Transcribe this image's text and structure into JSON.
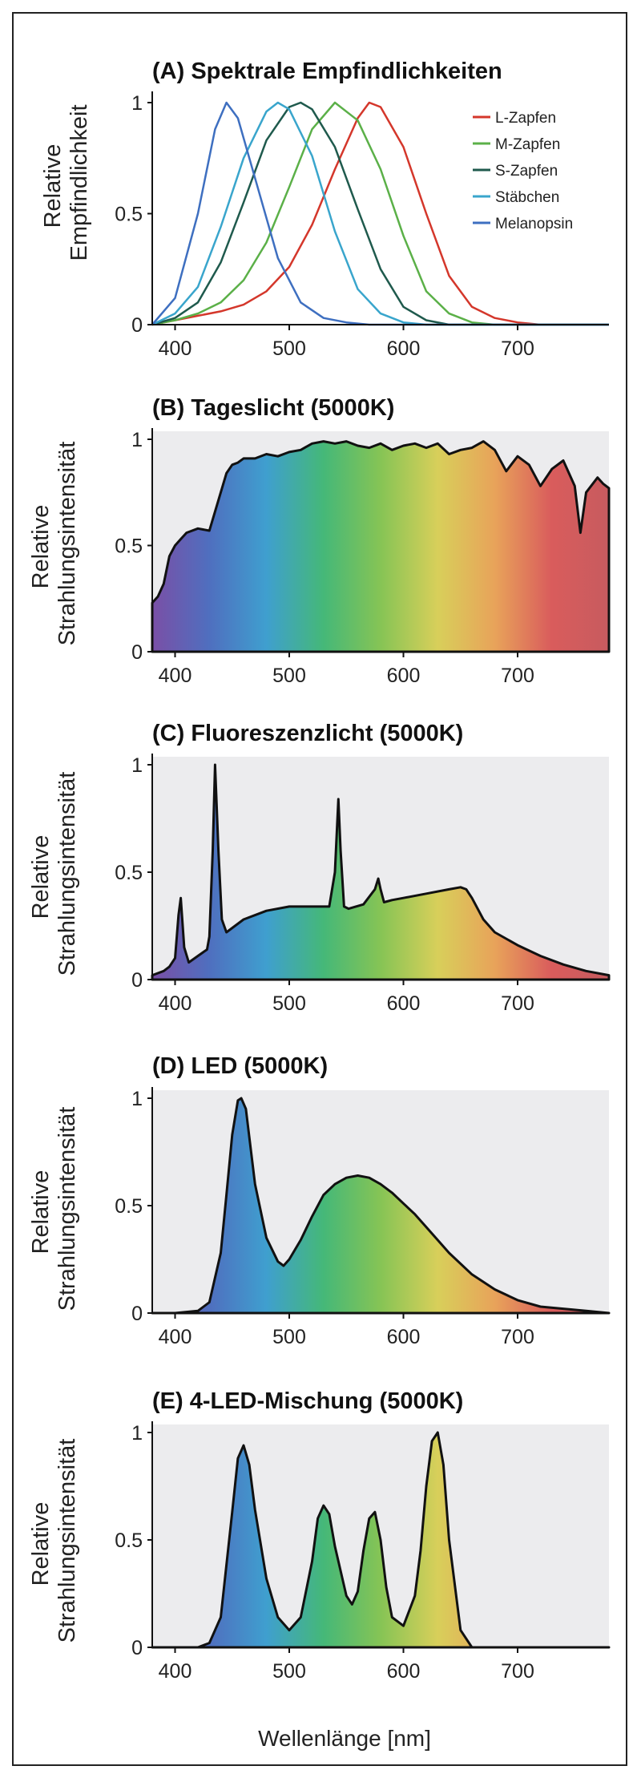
{
  "colors": {
    "frame": "#222222",
    "plot_bg": "#ececee",
    "spectrum": [
      "#7a4fa6",
      "#4f6fbf",
      "#3f9fcf",
      "#45b878",
      "#86c455",
      "#d8cf5a",
      "#e8a35a",
      "#d95c5c",
      "#c75b5f"
    ]
  },
  "xlabel": "Wellenlänge [nm]",
  "chart_data": [
    {
      "id": "A",
      "type": "line",
      "title": "(A) Spektrale Empfindlichkeiten",
      "ylabel_lines": [
        "Relative",
        "Empfindlichkeit"
      ],
      "xlim": [
        380,
        780
      ],
      "ylim": [
        0,
        1
      ],
      "x_ticks": [
        400,
        500,
        600,
        700
      ],
      "y_ticks": [
        0,
        0.5,
        1
      ],
      "y_tick_labels": [
        "0",
        "0.5",
        "1"
      ],
      "legend_position": "top-right",
      "series": [
        {
          "name": "L-Zapfen",
          "color": "#d4372b",
          "x": [
            380,
            400,
            420,
            440,
            460,
            480,
            500,
            520,
            540,
            560,
            570,
            580,
            600,
            620,
            640,
            660,
            680,
            700,
            720,
            740,
            780
          ],
          "y": [
            0.0,
            0.02,
            0.04,
            0.06,
            0.09,
            0.15,
            0.26,
            0.45,
            0.7,
            0.93,
            1.0,
            0.98,
            0.8,
            0.5,
            0.22,
            0.08,
            0.03,
            0.01,
            0.0,
            0.0,
            0.0
          ]
        },
        {
          "name": "M-Zapfen",
          "color": "#5bb048",
          "x": [
            380,
            400,
            420,
            440,
            460,
            480,
            500,
            520,
            540,
            560,
            580,
            600,
            620,
            640,
            660,
            680,
            700,
            720,
            780
          ],
          "y": [
            0.0,
            0.02,
            0.05,
            0.1,
            0.2,
            0.37,
            0.62,
            0.88,
            1.0,
            0.92,
            0.7,
            0.4,
            0.15,
            0.05,
            0.01,
            0.0,
            0.0,
            0.0,
            0.0
          ]
        },
        {
          "name": "S-Zapfen",
          "color": "#1f5a4d",
          "x": [
            380,
            400,
            420,
            440,
            460,
            480,
            500,
            510,
            520,
            540,
            560,
            580,
            600,
            620,
            640,
            780
          ],
          "y": [
            0.0,
            0.03,
            0.1,
            0.28,
            0.55,
            0.83,
            0.98,
            1.0,
            0.97,
            0.8,
            0.52,
            0.25,
            0.08,
            0.02,
            0.0,
            0.0
          ]
        },
        {
          "name": "Stäbchen",
          "color": "#39a5cc",
          "x": [
            380,
            400,
            420,
            440,
            460,
            480,
            490,
            500,
            520,
            540,
            560,
            580,
            600,
            620,
            780
          ],
          "y": [
            0.0,
            0.05,
            0.17,
            0.44,
            0.75,
            0.96,
            1.0,
            0.97,
            0.76,
            0.42,
            0.16,
            0.05,
            0.01,
            0.0,
            0.0
          ]
        },
        {
          "name": "Melanopsin",
          "color": "#3e6fc0",
          "x": [
            380,
            400,
            420,
            435,
            445,
            455,
            470,
            490,
            510,
            530,
            550,
            570,
            780
          ],
          "y": [
            0.0,
            0.12,
            0.5,
            0.88,
            1.0,
            0.93,
            0.66,
            0.3,
            0.1,
            0.03,
            0.01,
            0.0,
            0.0
          ]
        }
      ]
    },
    {
      "id": "B",
      "type": "area",
      "title": "(B) Tageslicht (5000K)",
      "ylabel_lines": [
        "Relative",
        "Strahlungsintensität"
      ],
      "xlim": [
        380,
        780
      ],
      "ylim": [
        0,
        1
      ],
      "x_ticks": [
        400,
        500,
        600,
        700
      ],
      "y_ticks": [
        0,
        0.5,
        1
      ],
      "y_tick_labels": [
        "0",
        "0.5",
        "1"
      ],
      "x": [
        380,
        385,
        390,
        395,
        400,
        405,
        410,
        420,
        430,
        440,
        445,
        450,
        455,
        460,
        470,
        480,
        490,
        500,
        510,
        520,
        530,
        540,
        550,
        560,
        570,
        580,
        590,
        600,
        610,
        620,
        630,
        640,
        650,
        660,
        670,
        680,
        690,
        700,
        710,
        720,
        730,
        740,
        750,
        755,
        760,
        770,
        775,
        780
      ],
      "y": [
        0.23,
        0.26,
        0.32,
        0.45,
        0.5,
        0.53,
        0.56,
        0.58,
        0.57,
        0.75,
        0.84,
        0.88,
        0.89,
        0.91,
        0.91,
        0.93,
        0.92,
        0.94,
        0.95,
        0.98,
        0.99,
        0.98,
        0.99,
        0.97,
        0.96,
        0.98,
        0.95,
        0.97,
        0.98,
        0.96,
        0.98,
        0.93,
        0.95,
        0.96,
        0.99,
        0.95,
        0.85,
        0.92,
        0.88,
        0.78,
        0.86,
        0.9,
        0.78,
        0.56,
        0.75,
        0.82,
        0.79,
        0.77
      ]
    },
    {
      "id": "C",
      "type": "area",
      "title": "(C) Fluoreszenzlicht (5000K)",
      "ylabel_lines": [
        "Relative",
        "Strahlungsintensität"
      ],
      "xlim": [
        380,
        780
      ],
      "ylim": [
        0,
        1
      ],
      "x_ticks": [
        400,
        500,
        600,
        700
      ],
      "y_ticks": [
        0,
        0.5,
        1
      ],
      "y_tick_labels": [
        "0",
        "0.5",
        "1"
      ],
      "x": [
        380,
        390,
        395,
        400,
        403,
        405,
        408,
        412,
        420,
        428,
        430,
        433,
        435,
        438,
        441,
        445,
        460,
        480,
        500,
        520,
        535,
        540,
        543,
        545,
        548,
        552,
        565,
        575,
        578,
        580,
        583,
        590,
        600,
        620,
        640,
        650,
        655,
        660,
        670,
        680,
        700,
        720,
        740,
        760,
        780
      ],
      "y": [
        0.02,
        0.04,
        0.06,
        0.1,
        0.3,
        0.38,
        0.15,
        0.08,
        0.11,
        0.14,
        0.2,
        0.6,
        1.0,
        0.6,
        0.28,
        0.22,
        0.28,
        0.32,
        0.34,
        0.34,
        0.34,
        0.5,
        0.84,
        0.6,
        0.34,
        0.33,
        0.35,
        0.42,
        0.47,
        0.42,
        0.36,
        0.37,
        0.38,
        0.4,
        0.42,
        0.43,
        0.42,
        0.38,
        0.28,
        0.22,
        0.16,
        0.11,
        0.07,
        0.04,
        0.02
      ]
    },
    {
      "id": "D",
      "type": "area",
      "title": "(D) LED (5000K)",
      "ylabel_lines": [
        "Relative",
        "Strahlungsintensität"
      ],
      "xlim": [
        380,
        780
      ],
      "ylim": [
        0,
        1
      ],
      "x_ticks": [
        400,
        500,
        600,
        700
      ],
      "y_ticks": [
        0,
        0.5,
        1
      ],
      "y_tick_labels": [
        "0",
        "0.5",
        "1"
      ],
      "x": [
        380,
        400,
        420,
        430,
        440,
        445,
        450,
        455,
        458,
        462,
        465,
        470,
        480,
        490,
        495,
        500,
        510,
        520,
        530,
        540,
        550,
        560,
        570,
        580,
        590,
        600,
        610,
        620,
        640,
        660,
        680,
        700,
        720,
        740,
        760,
        780
      ],
      "y": [
        0.0,
        0.0,
        0.01,
        0.05,
        0.28,
        0.55,
        0.83,
        0.99,
        1.0,
        0.95,
        0.82,
        0.6,
        0.35,
        0.24,
        0.22,
        0.25,
        0.34,
        0.45,
        0.55,
        0.6,
        0.63,
        0.64,
        0.63,
        0.6,
        0.56,
        0.51,
        0.46,
        0.4,
        0.28,
        0.18,
        0.11,
        0.06,
        0.03,
        0.02,
        0.01,
        0.0
      ]
    },
    {
      "id": "E",
      "type": "area",
      "title": "(E) 4-LED-Mischung (5000K)",
      "ylabel_lines": [
        "Relative",
        "Strahlungsintensität"
      ],
      "xlim": [
        380,
        780
      ],
      "ylim": [
        0,
        1
      ],
      "x_ticks": [
        400,
        500,
        600,
        700
      ],
      "y_ticks": [
        0,
        0.5,
        1
      ],
      "y_tick_labels": [
        "0",
        "0.5",
        "1"
      ],
      "x": [
        380,
        420,
        430,
        440,
        450,
        455,
        460,
        465,
        470,
        480,
        490,
        500,
        510,
        520,
        525,
        530,
        535,
        540,
        550,
        555,
        560,
        565,
        570,
        575,
        580,
        585,
        590,
        600,
        610,
        615,
        620,
        625,
        630,
        635,
        640,
        650,
        660,
        780
      ],
      "y": [
        0.0,
        0.0,
        0.02,
        0.14,
        0.63,
        0.88,
        0.94,
        0.85,
        0.64,
        0.32,
        0.14,
        0.08,
        0.14,
        0.4,
        0.6,
        0.66,
        0.62,
        0.47,
        0.24,
        0.2,
        0.26,
        0.45,
        0.6,
        0.63,
        0.5,
        0.28,
        0.14,
        0.1,
        0.24,
        0.45,
        0.75,
        0.96,
        1.0,
        0.85,
        0.5,
        0.08,
        0.0,
        0.0
      ]
    }
  ]
}
